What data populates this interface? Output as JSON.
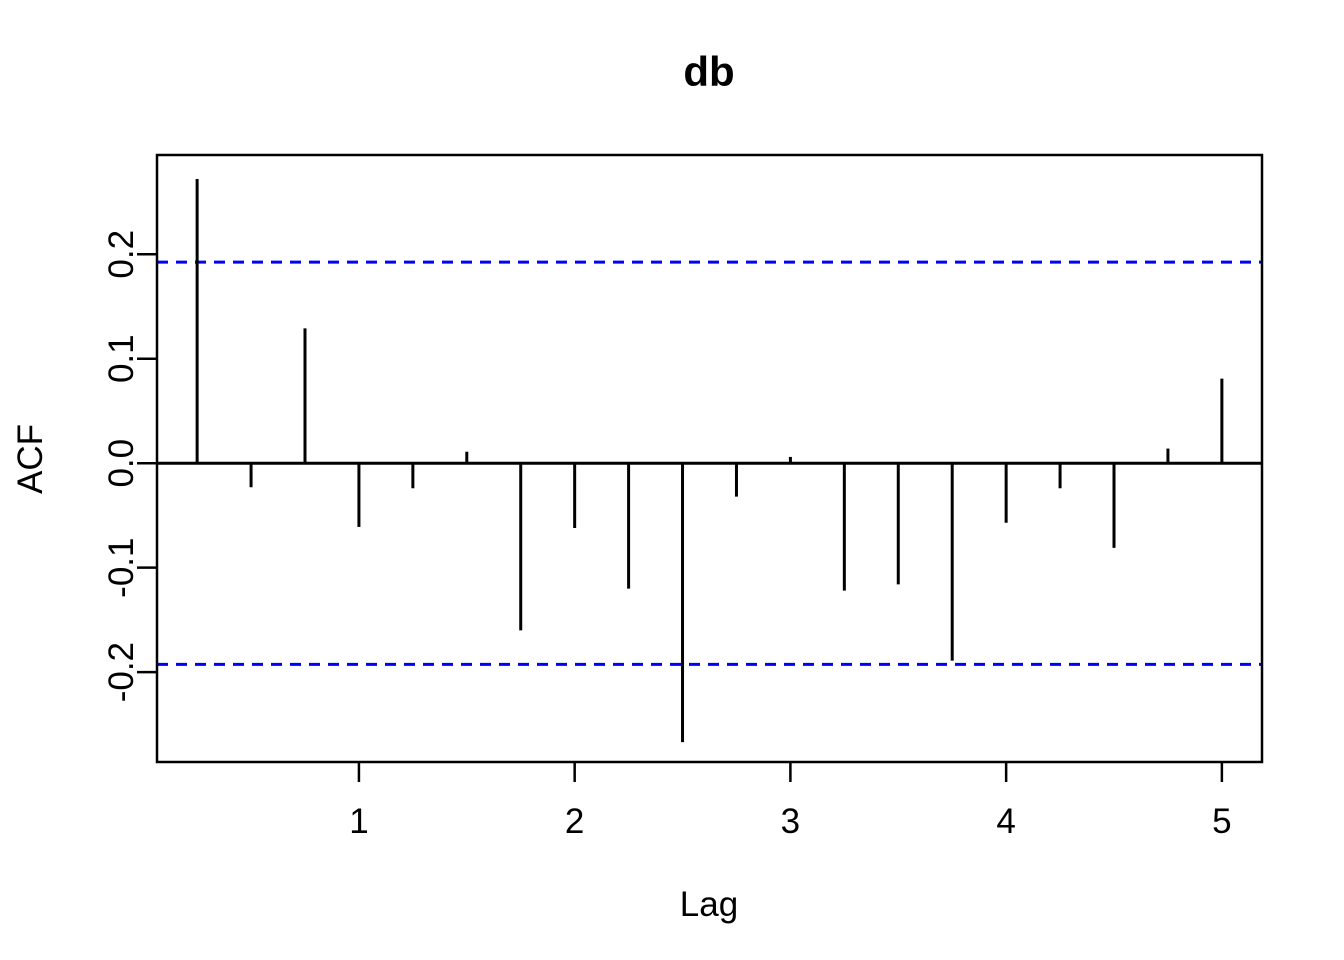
{
  "figure": {
    "background_color": "#ffffff",
    "foreground_color": "#000000"
  },
  "chart_data": {
    "type": "bar",
    "variant": "acf-stem-plot",
    "title": "db",
    "xlabel": "Lag",
    "ylabel": "ACF",
    "x": [
      0.25,
      0.5,
      0.75,
      1.0,
      1.25,
      1.5,
      1.75,
      2.0,
      2.25,
      2.5,
      2.75,
      3.0,
      3.25,
      3.5,
      3.75,
      4.0,
      4.25,
      4.5,
      4.75,
      5.0
    ],
    "values": [
      0.272,
      -0.023,
      0.129,
      -0.061,
      -0.024,
      0.011,
      -0.16,
      -0.062,
      -0.12,
      -0.267,
      -0.032,
      0.006,
      -0.122,
      -0.116,
      -0.189,
      -0.057,
      -0.024,
      -0.081,
      0.014,
      0.081
    ],
    "stem_color": "#000000",
    "zero_line": true,
    "confidence_interval": {
      "upper": 0.1925,
      "lower": -0.1925,
      "color": "#0000ff",
      "line_style": "dashed"
    },
    "xlim": [
      0.064,
      5.186
    ],
    "ylim": [
      -0.286,
      0.295
    ],
    "xticks": {
      "values": [
        1,
        2,
        3,
        4,
        5
      ],
      "labels": [
        "1",
        "2",
        "3",
        "4",
        "5"
      ]
    },
    "yticks": {
      "values": [
        -0.2,
        -0.1,
        0.0,
        0.1,
        0.2
      ],
      "labels": [
        "-0.2",
        "-0.1",
        "0.0",
        "0.1",
        "0.2"
      ]
    },
    "grid": false,
    "legend": "none"
  }
}
